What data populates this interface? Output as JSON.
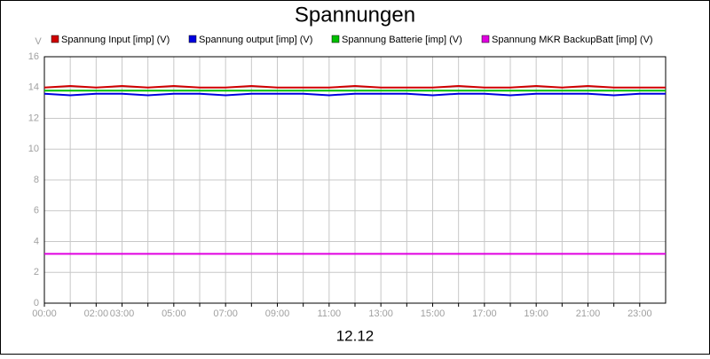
{
  "chart_data": {
    "type": "line",
    "title": "Spannungen",
    "x_label": "12.12",
    "y_label": "V",
    "x": [
      0,
      1,
      2,
      3,
      4,
      5,
      6,
      7,
      8,
      9,
      10,
      11,
      12,
      13,
      14,
      15,
      16,
      17,
      18,
      19,
      20,
      21,
      22,
      23,
      24
    ],
    "series": [
      {
        "name": "Spannung Input [imp] (V)",
        "color": "#d00000",
        "values": [
          14.0,
          14.1,
          14.0,
          14.1,
          14.0,
          14.1,
          14.0,
          14.0,
          14.1,
          14.0,
          14.0,
          14.0,
          14.1,
          14.0,
          14.0,
          14.0,
          14.1,
          14.0,
          14.0,
          14.1,
          14.0,
          14.1,
          14.0,
          14.0,
          14.0
        ]
      },
      {
        "name": "Spannung output [imp] (V)",
        "color": "#0000e0",
        "values": [
          13.6,
          13.5,
          13.6,
          13.6,
          13.5,
          13.6,
          13.6,
          13.5,
          13.6,
          13.6,
          13.6,
          13.5,
          13.6,
          13.6,
          13.6,
          13.5,
          13.6,
          13.6,
          13.5,
          13.6,
          13.6,
          13.6,
          13.5,
          13.6,
          13.6
        ]
      },
      {
        "name": "Spannung Batterie [imp] (V)",
        "color": "#00c000",
        "values": [
          13.8,
          13.8,
          13.8,
          13.8,
          13.8,
          13.8,
          13.8,
          13.8,
          13.8,
          13.8,
          13.8,
          13.8,
          13.8,
          13.8,
          13.8,
          13.8,
          13.8,
          13.8,
          13.8,
          13.8,
          13.8,
          13.8,
          13.8,
          13.8,
          13.8
        ]
      },
      {
        "name": "Spannung MKR BackupBatt [imp] (V)",
        "color": "#e000e0",
        "values": [
          3.2,
          3.2,
          3.2,
          3.2,
          3.2,
          3.2,
          3.2,
          3.2,
          3.2,
          3.2,
          3.2,
          3.2,
          3.2,
          3.2,
          3.2,
          3.2,
          3.2,
          3.2,
          3.2,
          3.2,
          3.2,
          3.2,
          3.2,
          3.2,
          3.2
        ]
      }
    ],
    "xlim": [
      0,
      24
    ],
    "ylim": [
      0,
      16
    ],
    "xticks": [
      {
        "value": 0,
        "label": "00:00"
      },
      {
        "value": 1,
        "label": null
      },
      {
        "value": 2,
        "label": "02:00"
      },
      {
        "value": 3,
        "label": "03:00"
      },
      {
        "value": 4,
        "label": null
      },
      {
        "value": 5,
        "label": "05:00"
      },
      {
        "value": 6,
        "label": null
      },
      {
        "value": 7,
        "label": "07:00"
      },
      {
        "value": 8,
        "label": null
      },
      {
        "value": 9,
        "label": "09:00"
      },
      {
        "value": 10,
        "label": null
      },
      {
        "value": 11,
        "label": "11:00"
      },
      {
        "value": 12,
        "label": null
      },
      {
        "value": 13,
        "label": "13:00"
      },
      {
        "value": 14,
        "label": null
      },
      {
        "value": 15,
        "label": "15:00"
      },
      {
        "value": 16,
        "label": null
      },
      {
        "value": 17,
        "label": "17:00"
      },
      {
        "value": 18,
        "label": null
      },
      {
        "value": 19,
        "label": "19:00"
      },
      {
        "value": 20,
        "label": null
      },
      {
        "value": 21,
        "label": "21:00"
      },
      {
        "value": 22,
        "label": null
      },
      {
        "value": 23,
        "label": "23:00"
      }
    ],
    "yticks": [
      0,
      2,
      4,
      6,
      8,
      10,
      12,
      14,
      16
    ],
    "grid": true
  }
}
